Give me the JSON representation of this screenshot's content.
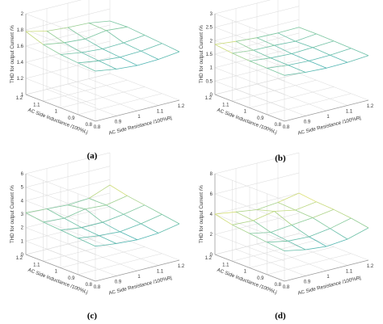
{
  "figure": {
    "panel_labels": [
      "(a)",
      "(b)",
      "(c)",
      "(d)"
    ]
  },
  "colors": {
    "grid": "#d9d9d9",
    "axis": "#9a9a9a",
    "surface_low": "#4bb3b3",
    "surface_high": "#e8e36a",
    "surface_mid": "#7fc79e"
  },
  "chart_data": [
    {
      "type": "surface",
      "panel": "(a)",
      "xlabel": "AC Side Resistance /100%Rj",
      "ylabel": "AC Side Inductance /100%Lj",
      "zlabel": "THD for output Current /%",
      "x": [
        0.8,
        0.9,
        1.0,
        1.1,
        1.2
      ],
      "y": [
        0.8,
        0.9,
        1.0,
        1.1,
        1.2
      ],
      "x_ticks": [
        "0.8",
        "0.9",
        "1",
        "1.1",
        "1.2"
      ],
      "y_ticks": [
        "0.8",
        "0.9",
        "1",
        "1.1",
        "1.2"
      ],
      "z_ticks": [
        "1",
        "1.2",
        "1.4",
        "1.6",
        "1.8",
        "2"
      ],
      "zlim": [
        1,
        2
      ],
      "z": [
        [
          1.62,
          1.58,
          1.56,
          1.57,
          1.6
        ],
        [
          1.64,
          1.6,
          1.58,
          1.59,
          1.62
        ],
        [
          1.66,
          1.62,
          1.6,
          1.61,
          1.64
        ],
        [
          1.7,
          1.66,
          1.64,
          1.68,
          1.66
        ],
        [
          1.78,
          1.72,
          1.7,
          1.69,
          1.65
        ]
      ]
    },
    {
      "type": "surface",
      "panel": "(b)",
      "xlabel": "AC Side Resistance /100%Rj",
      "ylabel": "AC Side Inductance /100%Lj",
      "zlabel": "THD for output Current /%",
      "x": [
        0.8,
        0.9,
        1.0,
        1.1,
        1.2
      ],
      "y": [
        0.8,
        0.9,
        1.0,
        1.1,
        1.2
      ],
      "x_ticks": [
        "0.8",
        "0.9",
        "1",
        "1.1",
        "1.2"
      ],
      "y_ticks": [
        "0.8",
        "0.9",
        "1",
        "1.1",
        "1.2"
      ],
      "z_ticks": [
        "0",
        "0.5",
        "1",
        "1.5",
        "2",
        "2.5",
        "3"
      ],
      "zlim": [
        0,
        3
      ],
      "z": [
        [
          1.7,
          1.62,
          1.58,
          1.6,
          1.66
        ],
        [
          1.72,
          1.64,
          1.6,
          1.62,
          1.68
        ],
        [
          1.74,
          1.66,
          1.62,
          1.66,
          1.7
        ],
        [
          1.78,
          1.7,
          1.68,
          1.64,
          1.72
        ],
        [
          1.86,
          1.78,
          1.72,
          1.7,
          1.72
        ]
      ]
    },
    {
      "type": "surface",
      "panel": "(c)",
      "xlabel": "AC Side Resistance /100%Rj",
      "ylabel": "AC Side Inductance /100%Lj",
      "zlabel": "THD for output Current /%",
      "x": [
        0.8,
        0.9,
        1.0,
        1.1,
        1.2
      ],
      "y": [
        0.8,
        0.9,
        1.0,
        1.1,
        1.2
      ],
      "x_ticks": [
        "0.8",
        "0.9",
        "1",
        "1.1",
        "1.2"
      ],
      "y_ticks": [
        "0.8",
        "0.9",
        "1",
        "1.1",
        "1.2"
      ],
      "z_ticks": [
        "0",
        "1",
        "2",
        "3",
        "4",
        "5",
        "6"
      ],
      "zlim": [
        0,
        6
      ],
      "z": [
        [
          2.6,
          2.4,
          2.3,
          2.4,
          2.7
        ],
        [
          2.7,
          2.5,
          2.4,
          2.6,
          2.9
        ],
        [
          2.8,
          2.6,
          2.6,
          2.8,
          3.1
        ],
        [
          2.9,
          2.8,
          3.1,
          3.0,
          3.3
        ],
        [
          3.1,
          3.0,
          2.9,
          3.0,
          3.6
        ]
      ]
    },
    {
      "type": "surface",
      "panel": "(d)",
      "xlabel": "AC Side Resistance /100%Rj",
      "ylabel": "AC Side Inductance /100%Lj",
      "zlabel": "THD for output Current /%",
      "x": [
        0.8,
        0.9,
        1.0,
        1.1,
        1.2
      ],
      "y": [
        0.8,
        0.9,
        1.0,
        1.1,
        1.2
      ],
      "x_ticks": [
        "0.8",
        "0.9",
        "1",
        "1.1",
        "1.2"
      ],
      "y_ticks": [
        "0.8",
        "0.9",
        "1",
        "1.1",
        "1.2"
      ],
      "z_ticks": [
        "0",
        "2",
        "4",
        "6",
        "8"
      ],
      "zlim": [
        0,
        8
      ],
      "z": [
        [
          3.0,
          2.6,
          2.4,
          2.6,
          3.2
        ],
        [
          3.2,
          2.8,
          2.7,
          3.0,
          3.5
        ],
        [
          3.4,
          3.0,
          3.2,
          3.4,
          3.7
        ],
        [
          3.6,
          3.5,
          3.9,
          3.5,
          3.8
        ],
        [
          4.0,
          3.7,
          3.4,
          3.6,
          4.0
        ]
      ]
    }
  ]
}
